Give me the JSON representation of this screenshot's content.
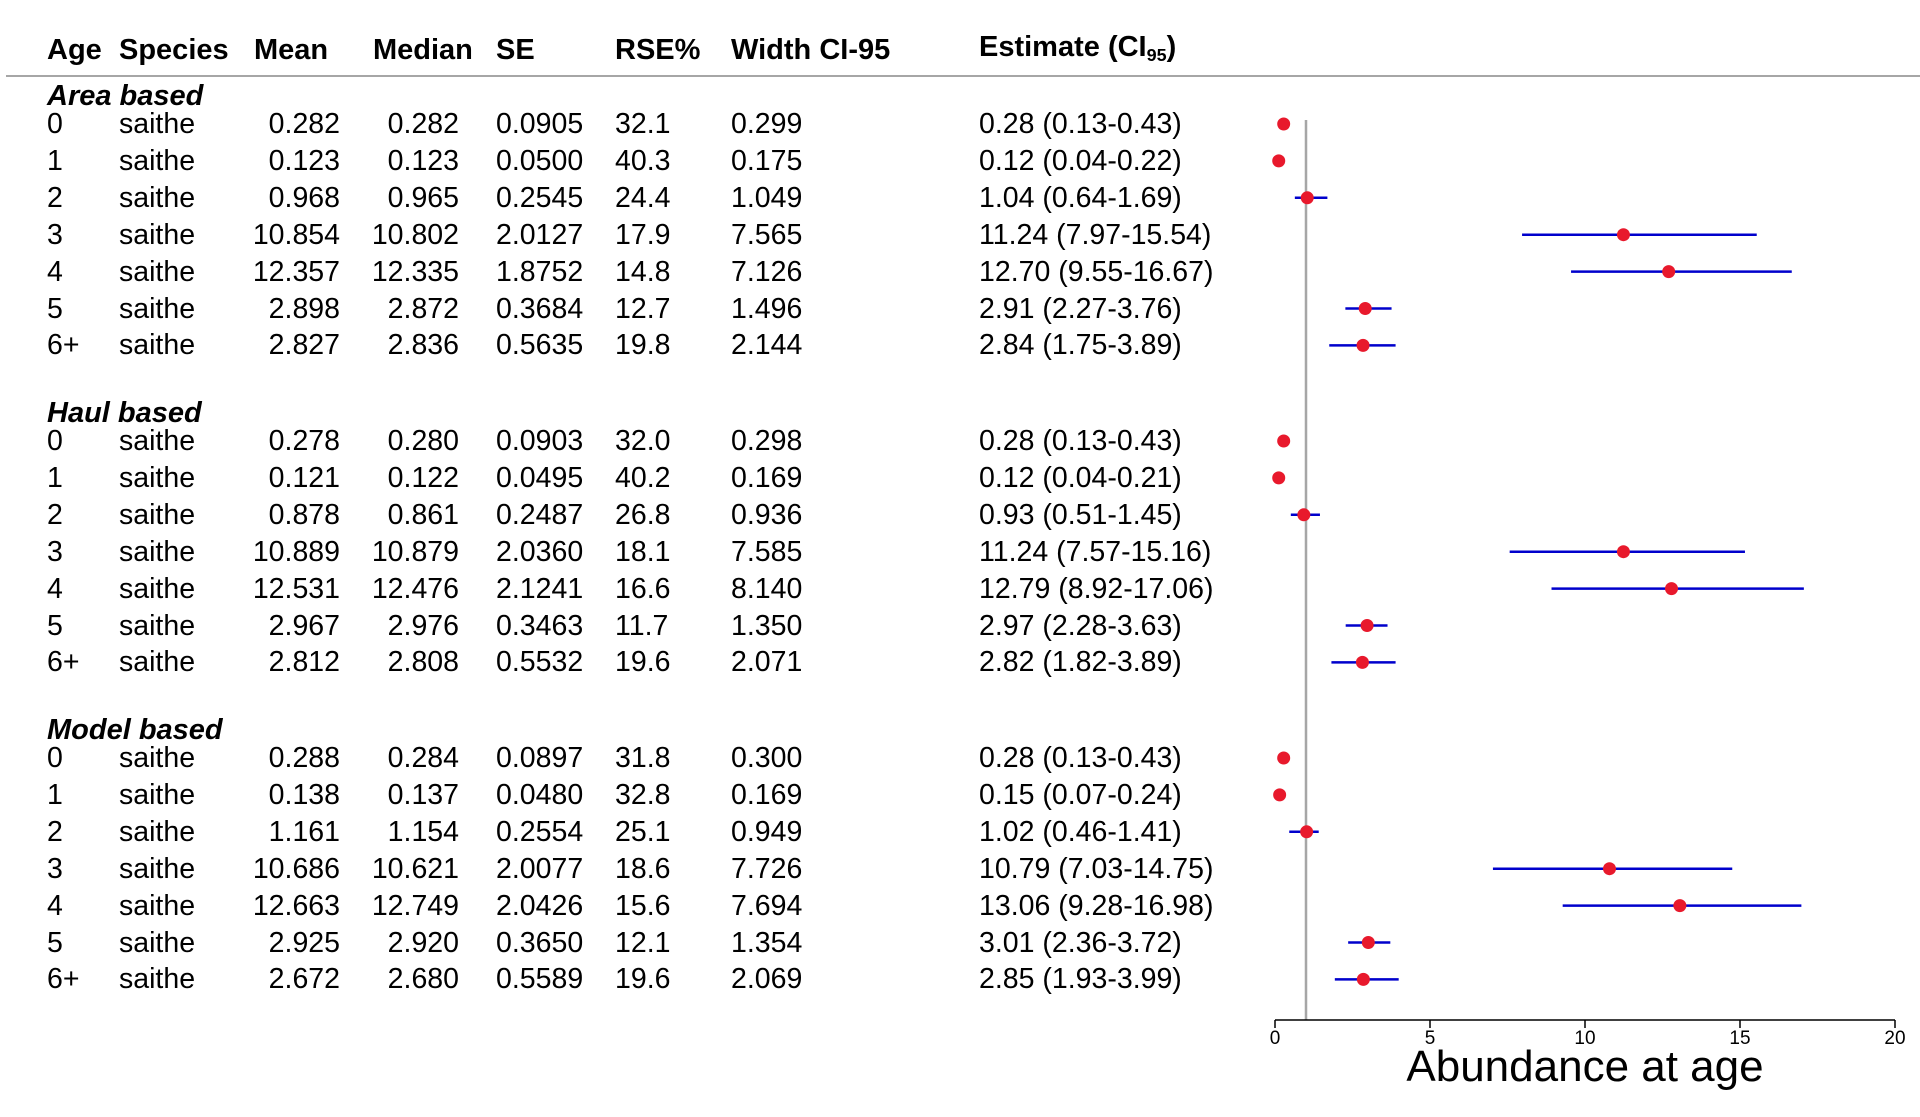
{
  "headers": {
    "age": "Age",
    "species": "Species",
    "mean": "Mean",
    "median": "Median",
    "se": "SE",
    "rse": "RSE%",
    "width": "Width CI-95",
    "estimate": "Estimate (CI",
    "estimate_sub": "95",
    "estimate_close": ")"
  },
  "groups": [
    {
      "title": "Area based",
      "rows": [
        {
          "age": "0",
          "species": "saithe",
          "mean": "0.282",
          "median": "0.282",
          "se": "0.0905",
          "rse": "32.1",
          "width": "0.299",
          "estimate": "0.28 (0.13-0.43)"
        },
        {
          "age": "1",
          "species": "saithe",
          "mean": "0.123",
          "median": "0.123",
          "se": "0.0500",
          "rse": "40.3",
          "width": "0.175",
          "estimate": "0.12 (0.04-0.22)"
        },
        {
          "age": "2",
          "species": "saithe",
          "mean": "0.968",
          "median": "0.965",
          "se": "0.2545",
          "rse": "24.4",
          "width": "1.049",
          "estimate": "1.04 (0.64-1.69)"
        },
        {
          "age": "3",
          "species": "saithe",
          "mean": "10.854",
          "median": "10.802",
          "se": "2.0127",
          "rse": "17.9",
          "width": "7.565",
          "estimate": "11.24 (7.97-15.54)"
        },
        {
          "age": "4",
          "species": "saithe",
          "mean": "12.357",
          "median": "12.335",
          "se": "1.8752",
          "rse": "14.8",
          "width": "7.126",
          "estimate": "12.70 (9.55-16.67)"
        },
        {
          "age": "5",
          "species": "saithe",
          "mean": "2.898",
          "median": "2.872",
          "se": "0.3684",
          "rse": "12.7",
          "width": "1.496",
          "estimate": "2.91 (2.27-3.76)"
        },
        {
          "age": "6+",
          "species": "saithe",
          "mean": "2.827",
          "median": "2.836",
          "se": "0.5635",
          "rse": "19.8",
          "width": "2.144",
          "estimate": "2.84 (1.75-3.89)"
        }
      ]
    },
    {
      "title": "Haul based",
      "rows": [
        {
          "age": "0",
          "species": "saithe",
          "mean": "0.278",
          "median": "0.280",
          "se": "0.0903",
          "rse": "32.0",
          "width": "0.298",
          "estimate": "0.28 (0.13-0.43)"
        },
        {
          "age": "1",
          "species": "saithe",
          "mean": "0.121",
          "median": "0.122",
          "se": "0.0495",
          "rse": "40.2",
          "width": "0.169",
          "estimate": "0.12 (0.04-0.21)"
        },
        {
          "age": "2",
          "species": "saithe",
          "mean": "0.878",
          "median": "0.861",
          "se": "0.2487",
          "rse": "26.8",
          "width": "0.936",
          "estimate": "0.93 (0.51-1.45)"
        },
        {
          "age": "3",
          "species": "saithe",
          "mean": "10.889",
          "median": "10.879",
          "se": "2.0360",
          "rse": "18.1",
          "width": "7.585",
          "estimate": "11.24 (7.57-15.16)"
        },
        {
          "age": "4",
          "species": "saithe",
          "mean": "12.531",
          "median": "12.476",
          "se": "2.1241",
          "rse": "16.6",
          "width": "8.140",
          "estimate": "12.79 (8.92-17.06)"
        },
        {
          "age": "5",
          "species": "saithe",
          "mean": "2.967",
          "median": "2.976",
          "se": "0.3463",
          "rse": "11.7",
          "width": "1.350",
          "estimate": "2.97 (2.28-3.63)"
        },
        {
          "age": "6+",
          "species": "saithe",
          "mean": "2.812",
          "median": "2.808",
          "se": "0.5532",
          "rse": "19.6",
          "width": "2.071",
          "estimate": "2.82 (1.82-3.89)"
        }
      ]
    },
    {
      "title": "Model based",
      "rows": [
        {
          "age": "0",
          "species": "saithe",
          "mean": "0.288",
          "median": "0.284",
          "se": "0.0897",
          "rse": "31.8",
          "width": "0.300",
          "estimate": "0.28 (0.13-0.43)"
        },
        {
          "age": "1",
          "species": "saithe",
          "mean": "0.138",
          "median": "0.137",
          "se": "0.0480",
          "rse": "32.8",
          "width": "0.169",
          "estimate": "0.15 (0.07-0.24)"
        },
        {
          "age": "2",
          "species": "saithe",
          "mean": "1.161",
          "median": "1.154",
          "se": "0.2554",
          "rse": "25.1",
          "width": "0.949",
          "estimate": "1.02 (0.46-1.41)"
        },
        {
          "age": "3",
          "species": "saithe",
          "mean": "10.686",
          "median": "10.621",
          "se": "2.0077",
          "rse": "18.6",
          "width": "7.726",
          "estimate": "10.79 (7.03-14.75)"
        },
        {
          "age": "4",
          "species": "saithe",
          "mean": "12.663",
          "median": "12.749",
          "se": "2.0426",
          "rse": "15.6",
          "width": "7.694",
          "estimate": "13.06 (9.28-16.98)"
        },
        {
          "age": "5",
          "species": "saithe",
          "mean": "2.925",
          "median": "2.920",
          "se": "0.3650",
          "rse": "12.1",
          "width": "1.354",
          "estimate": "3.01 (2.36-3.72)"
        },
        {
          "age": "6+",
          "species": "saithe",
          "mean": "2.672",
          "median": "2.680",
          "se": "0.5589",
          "rse": "19.6",
          "width": "2.069",
          "estimate": "2.85 (1.93-3.99)"
        }
      ]
    }
  ],
  "chart_data": {
    "type": "scatter",
    "xlabel": "Abundance at age",
    "xlim": [
      0,
      20
    ],
    "xticks": [
      0,
      5,
      10,
      15,
      20
    ],
    "reference_line": 1,
    "point_color": "#e8192c",
    "ci_color": "#0000cc",
    "reference_color": "#a6a6a6",
    "series": [
      {
        "name": "Area based",
        "points": [
          {
            "label": "0",
            "estimate": 0.28,
            "low": 0.13,
            "high": 0.43
          },
          {
            "label": "1",
            "estimate": 0.12,
            "low": 0.04,
            "high": 0.22
          },
          {
            "label": "2",
            "estimate": 1.04,
            "low": 0.64,
            "high": 1.69
          },
          {
            "label": "3",
            "estimate": 11.24,
            "low": 7.97,
            "high": 15.54
          },
          {
            "label": "4",
            "estimate": 12.7,
            "low": 9.55,
            "high": 16.67
          },
          {
            "label": "5",
            "estimate": 2.91,
            "low": 2.27,
            "high": 3.76
          },
          {
            "label": "6+",
            "estimate": 2.84,
            "low": 1.75,
            "high": 3.89
          }
        ]
      },
      {
        "name": "Haul based",
        "points": [
          {
            "label": "0",
            "estimate": 0.28,
            "low": 0.13,
            "high": 0.43
          },
          {
            "label": "1",
            "estimate": 0.12,
            "low": 0.04,
            "high": 0.21
          },
          {
            "label": "2",
            "estimate": 0.93,
            "low": 0.51,
            "high": 1.45
          },
          {
            "label": "3",
            "estimate": 11.24,
            "low": 7.57,
            "high": 15.16
          },
          {
            "label": "4",
            "estimate": 12.79,
            "low": 8.92,
            "high": 17.06
          },
          {
            "label": "5",
            "estimate": 2.97,
            "low": 2.28,
            "high": 3.63
          },
          {
            "label": "6+",
            "estimate": 2.82,
            "low": 1.82,
            "high": 3.89
          }
        ]
      },
      {
        "name": "Model based",
        "points": [
          {
            "label": "0",
            "estimate": 0.28,
            "low": 0.13,
            "high": 0.43
          },
          {
            "label": "1",
            "estimate": 0.15,
            "low": 0.07,
            "high": 0.24
          },
          {
            "label": "2",
            "estimate": 1.02,
            "low": 0.46,
            "high": 1.41
          },
          {
            "label": "3",
            "estimate": 10.79,
            "low": 7.03,
            "high": 14.75
          },
          {
            "label": "4",
            "estimate": 13.06,
            "low": 9.28,
            "high": 16.98
          },
          {
            "label": "5",
            "estimate": 3.01,
            "low": 2.36,
            "high": 3.72
          },
          {
            "label": "6+",
            "estimate": 2.85,
            "low": 1.93,
            "high": 3.99
          }
        ]
      }
    ]
  }
}
